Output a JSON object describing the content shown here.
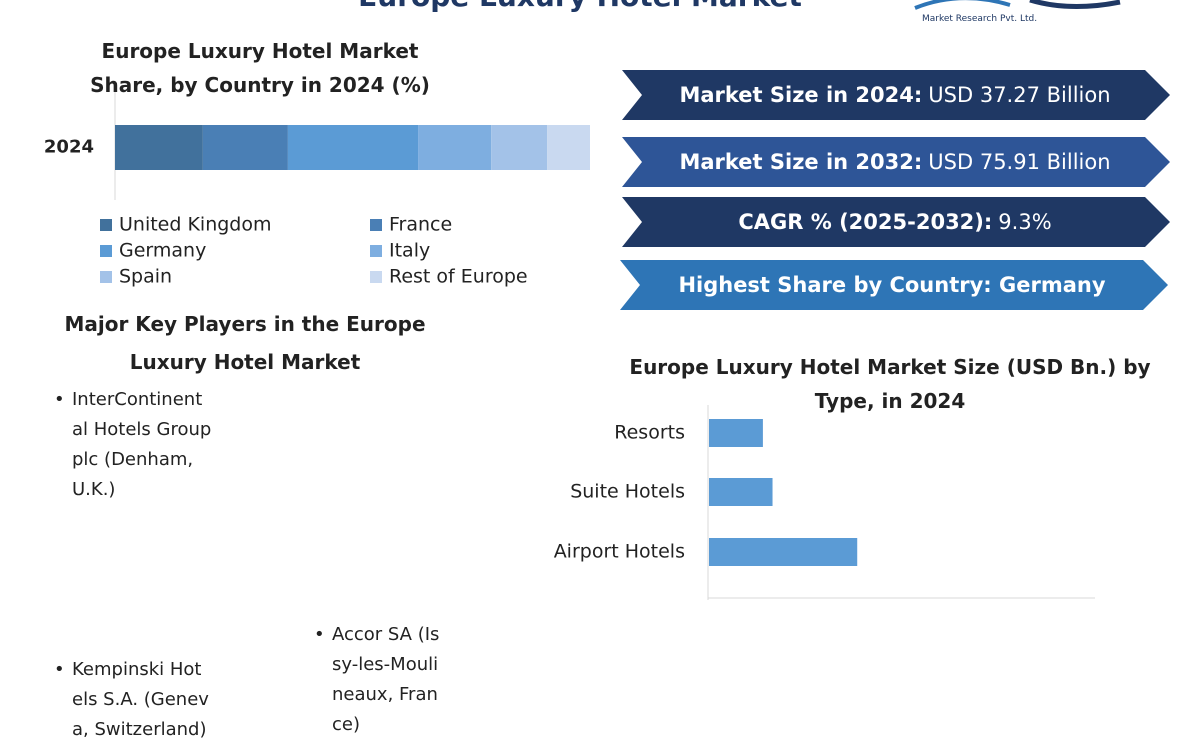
{
  "header": {
    "title": "Europe Luxury Hotel Market",
    "logo_text": "Market Research Pvt. Ltd."
  },
  "chart_data": [
    {
      "type": "stacked_bar",
      "title": "Europe Luxury Hotel Market Share, by Country in 2024 (%)",
      "categories": [
        "2024"
      ],
      "xlim": [
        0,
        100
      ],
      "series": [
        {
          "name": "United Kingdom",
          "color": "#41719c",
          "values": [
            18.5
          ]
        },
        {
          "name": "France",
          "color": "#4a7fb5",
          "values": [
            17.9
          ]
        },
        {
          "name": "Germany",
          "color": "#5b9bd5",
          "values": [
            27.4
          ]
        },
        {
          "name": "Italy",
          "color": "#7eaee0",
          "values": [
            15.4
          ]
        },
        {
          "name": "Spain",
          "color": "#a3c2e8",
          "values": [
            11.8
          ]
        },
        {
          "name": "Rest of Europe",
          "color": "#c9d9f0",
          "values": [
            9.0
          ]
        }
      ]
    },
    {
      "type": "hbar",
      "title": "Europe Luxury Hotel Market Size (USD Bn.) by Type, in 2024",
      "categories": [
        "Resorts",
        "Suite Hotels",
        "Airport Hotels"
      ],
      "values": [
        2.8,
        3.3,
        7.7
      ],
      "color": "#5b9bd5",
      "xlim": [
        0,
        20
      ]
    }
  ],
  "kpis": [
    {
      "label": "Market Size in 2024:",
      "value": "USD 37.27 Billion"
    },
    {
      "label": "Market Size in 2032:",
      "value": "USD 75.91 Billion"
    },
    {
      "label": "CAGR % (2025-2032):",
      "value": "9.3%"
    },
    {
      "label": "Highest Share by Country: Germany"
    }
  ],
  "key_players": {
    "title": "Major Key Players in the Europe Luxury Hotel Market",
    "items": [
      "InterContinental Hotels Group plc (Denham, U.K.)",
      "Kempinski Hotels S.A. (Geneva, Switzerland)",
      "Accor SA (Issy-les-Moulineaux, France)"
    ]
  }
}
